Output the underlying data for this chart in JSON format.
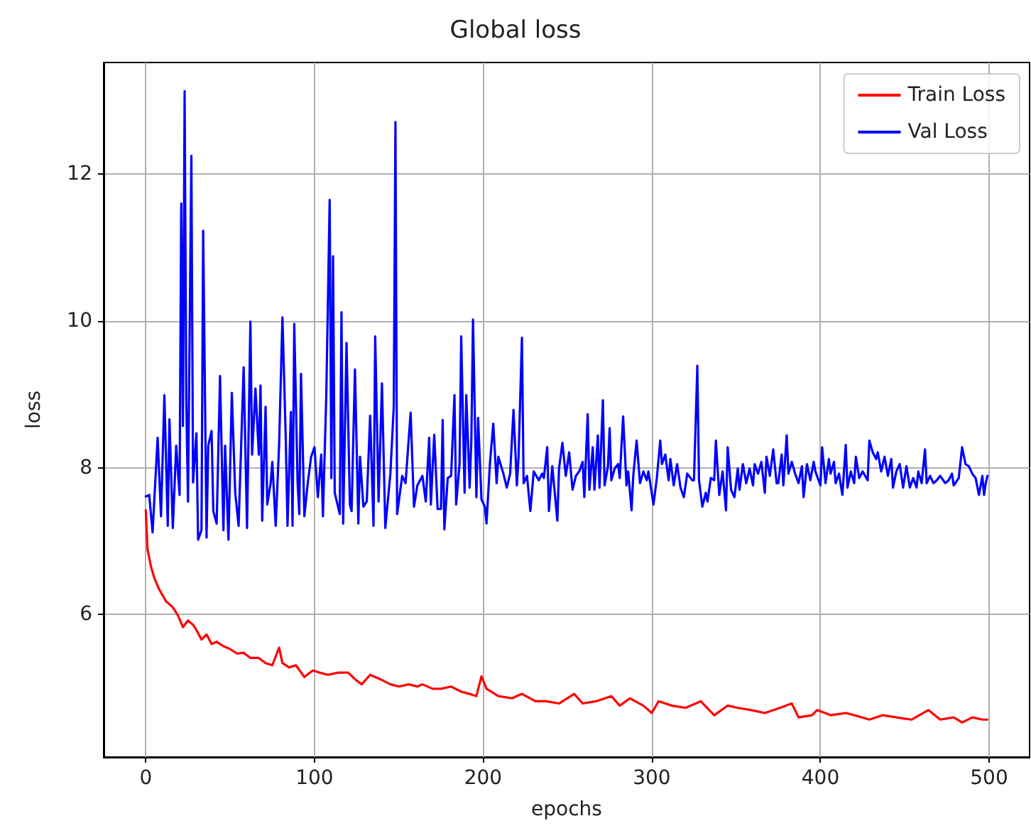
{
  "chart_data": {
    "type": "line",
    "title": "Global loss",
    "xlabel": "epochs",
    "ylabel": "loss",
    "xlim": [
      -25,
      524
    ],
    "ylim": [
      4.06,
      13.52
    ],
    "xticks": [
      0,
      100,
      200,
      300,
      400,
      500
    ],
    "yticks": [
      6,
      8,
      10,
      12
    ],
    "grid": true,
    "legend": "top right",
    "marker": "none",
    "line_style": "solid",
    "series": [
      {
        "name": "Train Loss",
        "color": "#ff0000",
        "x": [
          0,
          1,
          3,
          5,
          8,
          12,
          16,
          19,
          22,
          25,
          28,
          30,
          33,
          36,
          39,
          42,
          46,
          50,
          54,
          58,
          62,
          67,
          71,
          75,
          79,
          81,
          85,
          89,
          94,
          99,
          103,
          108,
          114,
          120,
          124,
          128,
          133,
          139,
          145,
          150,
          156,
          161,
          164,
          170,
          175,
          181,
          187,
          192,
          196,
          199,
          202,
          209,
          217,
          223,
          231,
          237,
          245,
          254,
          259,
          267,
          276,
          281,
          287,
          295,
          300,
          304,
          312,
          320,
          329,
          337,
          345,
          351,
          359,
          367,
          376,
          383,
          387,
          395,
          398,
          406,
          415,
          420,
          429,
          437,
          445,
          454,
          464,
          471,
          479,
          484,
          490,
          496,
          499
        ],
        "values": [
          7.42,
          6.89,
          6.66,
          6.5,
          6.34,
          6.18,
          6.1,
          5.99,
          5.83,
          5.92,
          5.86,
          5.79,
          5.66,
          5.73,
          5.6,
          5.63,
          5.57,
          5.53,
          5.47,
          5.48,
          5.41,
          5.41,
          5.34,
          5.31,
          5.55,
          5.34,
          5.28,
          5.31,
          5.15,
          5.24,
          5.21,
          5.18,
          5.21,
          5.21,
          5.12,
          5.05,
          5.18,
          5.12,
          5.05,
          5.02,
          5.05,
          5.02,
          5.05,
          4.99,
          4.99,
          5.02,
          4.95,
          4.92,
          4.89,
          5.16,
          4.99,
          4.89,
          4.86,
          4.92,
          4.82,
          4.82,
          4.79,
          4.92,
          4.79,
          4.82,
          4.89,
          4.76,
          4.86,
          4.76,
          4.66,
          4.82,
          4.76,
          4.73,
          4.82,
          4.63,
          4.76,
          4.73,
          4.7,
          4.66,
          4.73,
          4.79,
          4.6,
          4.63,
          4.7,
          4.63,
          4.66,
          4.63,
          4.57,
          4.63,
          4.6,
          4.57,
          4.7,
          4.57,
          4.6,
          4.53,
          4.6,
          4.57,
          4.57
        ]
      },
      {
        "name": "Val Loss",
        "color": "#0000ff",
        "x": [
          0,
          2,
          4,
          7,
          9,
          11,
          13,
          14,
          16,
          18,
          20,
          21,
          22,
          23,
          24,
          25,
          27,
          28,
          30,
          31,
          33,
          34,
          36,
          37,
          39,
          40,
          42,
          44,
          46,
          47,
          49,
          51,
          53,
          55,
          58,
          60,
          62,
          63,
          65,
          67,
          68,
          69,
          71,
          72,
          74,
          75,
          77,
          79,
          81,
          83,
          84,
          86,
          87,
          88,
          90,
          91,
          92,
          94,
          96,
          98,
          100,
          102,
          104,
          105,
          107,
          109,
          110,
          111,
          112,
          115,
          116,
          117,
          119,
          121,
          122,
          124,
          126,
          127,
          129,
          131,
          133,
          135,
          136,
          138,
          140,
          142,
          145,
          147,
          148,
          149,
          152,
          154,
          157,
          159,
          161,
          164,
          166,
          168,
          169,
          171,
          173,
          175,
          176,
          177,
          179,
          181,
          183,
          184,
          186,
          187,
          189,
          190,
          192,
          193,
          194,
          196,
          197,
          199,
          201,
          202,
          204,
          206,
          208,
          209,
          212,
          214,
          216,
          218,
          220,
          221,
          223,
          224,
          226,
          228,
          230,
          233,
          235,
          236,
          238,
          239,
          241,
          244,
          245,
          247,
          249,
          251,
          253,
          255,
          257,
          259,
          260,
          262,
          263,
          265,
          266,
          268,
          269,
          271,
          272,
          274,
          275,
          276,
          278,
          280,
          281,
          283,
          285,
          286,
          288,
          289,
          291,
          293,
          295,
          297,
          298,
          301,
          303,
          305,
          306,
          308,
          310,
          311,
          313,
          315,
          317,
          319,
          321,
          323,
          324,
          325,
          327,
          328,
          330,
          332,
          333,
          335,
          337,
          338,
          340,
          342,
          344,
          345,
          347,
          349,
          351,
          352,
          354,
          356,
          358,
          360,
          361,
          363,
          365,
          367,
          368,
          370,
          372,
          374,
          375,
          377,
          378,
          380,
          381,
          383,
          385,
          387,
          389,
          390,
          392,
          394,
          396,
          397,
          400,
          401,
          403,
          405,
          406,
          408,
          409,
          411,
          413,
          415,
          416,
          418,
          420,
          421,
          423,
          425,
          428,
          429,
          431,
          433,
          434,
          436,
          438,
          440,
          442,
          443,
          445,
          447,
          449,
          451,
          453,
          455,
          457,
          458,
          460,
          462,
          463,
          465,
          467,
          469,
          471,
          474,
          476,
          478,
          479,
          482,
          484,
          486,
          488,
          490,
          492,
          494,
          496,
          497,
          498,
          499
        ],
        "values": [
          7.61,
          7.63,
          7.12,
          8.41,
          7.34,
          8.99,
          7.21,
          8.66,
          7.18,
          8.3,
          7.63,
          11.6,
          8.57,
          13.13,
          8.9,
          7.54,
          12.25,
          7.8,
          8.47,
          7.02,
          7.15,
          11.23,
          7.05,
          8.3,
          8.5,
          7.41,
          7.24,
          9.25,
          7.15,
          8.3,
          7.02,
          9.02,
          7.66,
          7.21,
          9.37,
          7.18,
          9.99,
          8.18,
          9.08,
          8.18,
          9.12,
          7.28,
          8.83,
          7.5,
          7.79,
          8.08,
          7.21,
          8.3,
          10.05,
          8.37,
          7.21,
          8.76,
          7.21,
          9.96,
          7.79,
          7.37,
          9.28,
          7.34,
          7.79,
          8.15,
          8.28,
          7.6,
          8.18,
          7.34,
          8.99,
          11.65,
          7.86,
          10.88,
          7.66,
          7.37,
          10.12,
          7.24,
          9.7,
          7.5,
          7.41,
          9.34,
          7.24,
          8.15,
          7.47,
          7.54,
          8.71,
          7.21,
          9.79,
          7.54,
          9.15,
          7.18,
          7.92,
          8.83,
          12.71,
          7.37,
          7.89,
          7.79,
          8.75,
          7.47,
          7.76,
          7.89,
          7.54,
          8.41,
          7.5,
          8.45,
          7.44,
          7.44,
          8.65,
          7.16,
          7.86,
          7.89,
          8.99,
          7.5,
          8.05,
          9.79,
          7.66,
          8.99,
          7.73,
          8.37,
          10.02,
          7.6,
          8.68,
          7.57,
          7.47,
          7.24,
          8.05,
          8.6,
          7.79,
          8.15,
          7.92,
          7.73,
          7.92,
          8.79,
          7.76,
          8.15,
          9.77,
          7.79,
          7.89,
          7.41,
          7.95,
          7.83,
          7.92,
          7.86,
          8.28,
          7.41,
          8.02,
          7.28,
          7.99,
          8.34,
          7.89,
          8.21,
          7.7,
          7.89,
          7.95,
          8.08,
          7.6,
          8.73,
          7.7,
          8.28,
          7.7,
          8.44,
          7.73,
          8.92,
          7.76,
          8.02,
          8.54,
          7.83,
          7.99,
          8.05,
          7.86,
          8.7,
          7.76,
          7.95,
          7.42,
          7.89,
          8.37,
          7.79,
          7.95,
          7.83,
          7.95,
          7.5,
          7.86,
          8.37,
          8.05,
          8.18,
          7.83,
          8.12,
          7.76,
          8.05,
          7.73,
          7.6,
          7.92,
          7.86,
          7.83,
          7.83,
          9.39,
          7.83,
          7.47,
          7.66,
          7.54,
          7.86,
          7.83,
          8.37,
          7.63,
          7.95,
          7.42,
          8.28,
          7.7,
          7.6,
          7.99,
          7.7,
          8.05,
          7.79,
          7.99,
          7.76,
          8.05,
          7.92,
          8.08,
          7.66,
          8.15,
          7.89,
          8.25,
          7.79,
          7.79,
          8.18,
          7.76,
          8.44,
          7.92,
          8.08,
          7.92,
          7.79,
          8.02,
          7.6,
          8.05,
          7.83,
          8.08,
          7.95,
          7.76,
          8.28,
          7.79,
          8.12,
          7.92,
          8.08,
          7.79,
          7.92,
          7.63,
          8.31,
          7.73,
          7.95,
          7.79,
          8.15,
          7.86,
          7.95,
          7.83,
          8.37,
          8.21,
          8.12,
          8.21,
          7.95,
          8.15,
          7.89,
          8.12,
          7.73,
          7.95,
          8.05,
          7.73,
          8.02,
          7.73,
          7.86,
          7.73,
          7.95,
          7.79,
          8.25,
          7.79,
          7.89,
          7.79,
          7.83,
          7.89,
          7.79,
          7.83,
          7.92,
          7.76,
          7.86,
          8.28,
          8.05,
          8.02,
          7.92,
          7.86,
          7.63,
          7.89,
          7.63,
          7.79,
          7.89
        ]
      }
    ]
  }
}
